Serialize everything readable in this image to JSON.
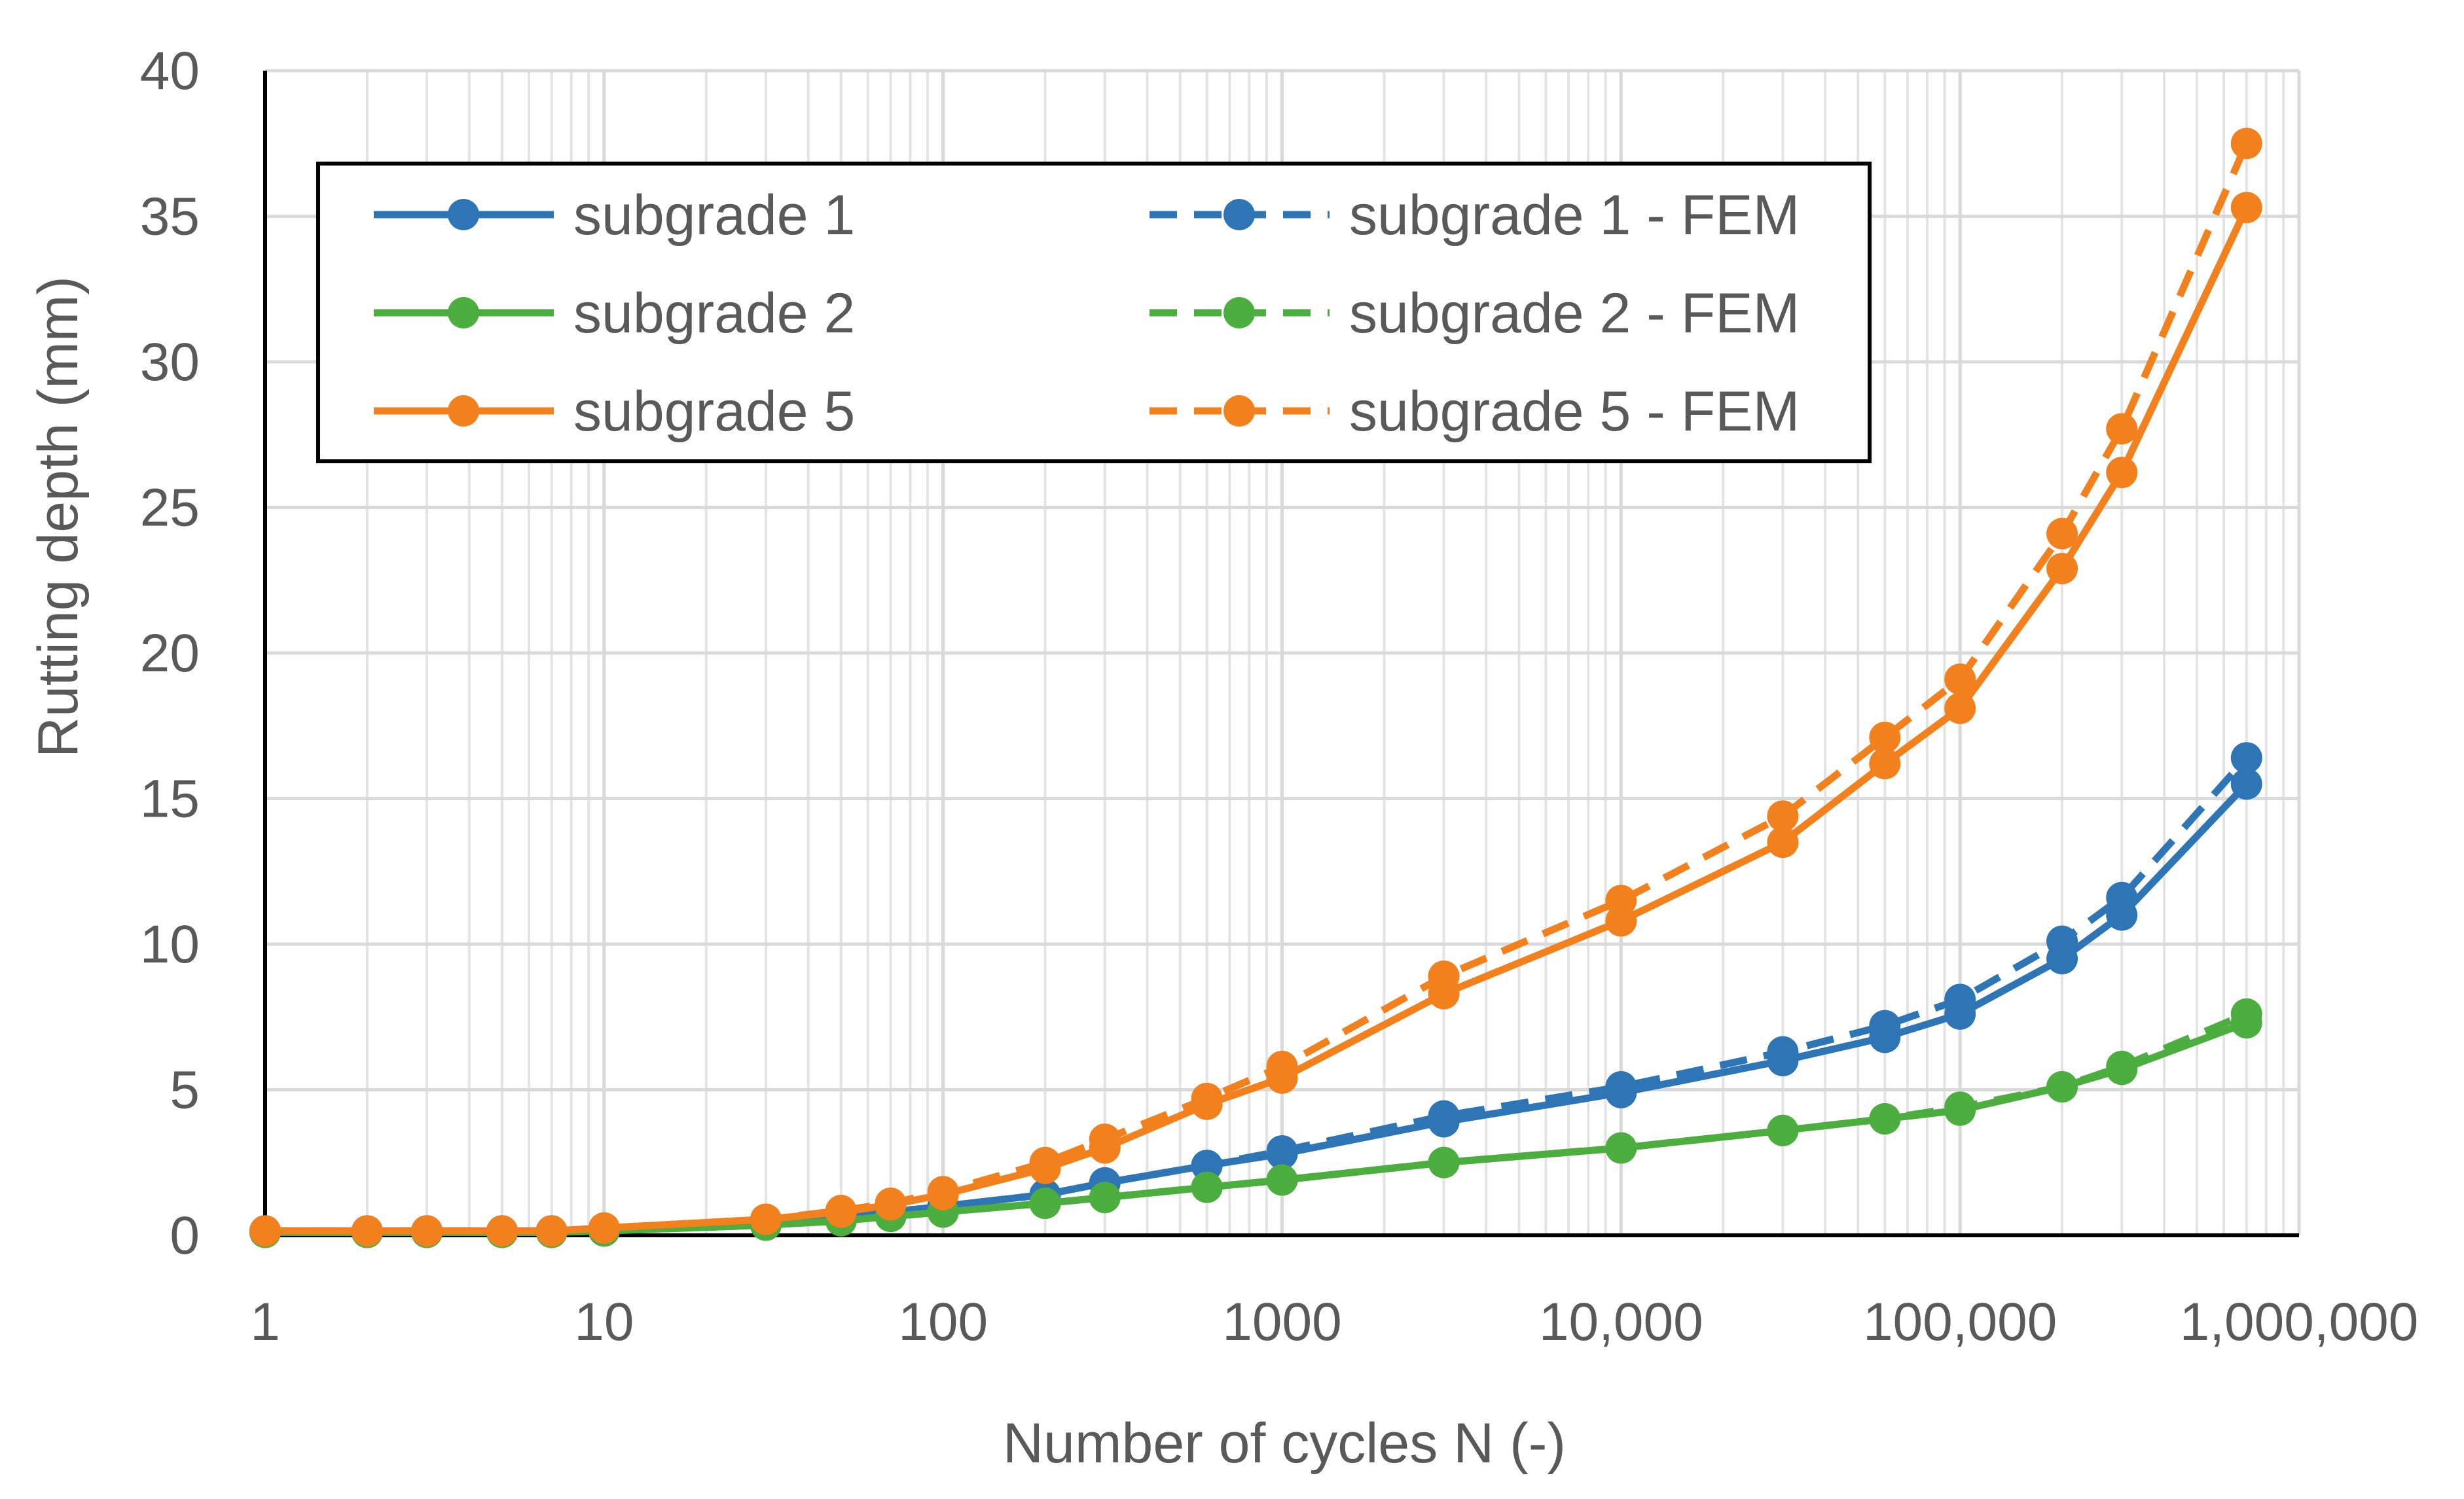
{
  "chart_data": {
    "type": "line",
    "title": "",
    "xlabel": "Number of cycles N (-)",
    "ylabel": "Rutting depth (mm)",
    "x_scale": "log",
    "xlim": [
      1,
      1000000
    ],
    "ylim": [
      0,
      40
    ],
    "x_ticks": [
      1,
      10,
      100,
      1000,
      10000,
      100000,
      1000000
    ],
    "x_tick_labels": [
      "1",
      "10",
      "100",
      "1000",
      "10,000",
      "100,000",
      "1,000,000"
    ],
    "y_ticks": [
      0,
      5,
      10,
      15,
      20,
      25,
      30,
      35,
      40
    ],
    "y_tick_labels": [
      "0",
      "5",
      "10",
      "15",
      "20",
      "25",
      "30",
      "35",
      "40"
    ],
    "grid": true,
    "legend": "top-left, inside, two columns",
    "series": [
      {
        "name": "subgrade 1",
        "color": "#2E75B6",
        "dashed": false,
        "x": [
          1,
          2,
          3,
          5,
          7,
          10,
          30,
          50,
          70,
          100,
          200,
          300,
          600,
          1000,
          3000,
          10000,
          30000,
          60000,
          100000,
          200000,
          300000,
          700000
        ],
        "y": [
          0.15,
          0.15,
          0.15,
          0.15,
          0.15,
          0.2,
          0.45,
          0.6,
          0.8,
          1.0,
          1.4,
          1.8,
          2.4,
          2.8,
          3.9,
          4.9,
          6.0,
          6.8,
          7.6,
          9.5,
          11.0,
          15.5
        ]
      },
      {
        "name": "subgrade 2",
        "color": "#4CAE3F",
        "dashed": false,
        "x": [
          1,
          2,
          3,
          5,
          7,
          10,
          30,
          50,
          70,
          100,
          200,
          300,
          600,
          1000,
          3000,
          10000,
          30000,
          60000,
          100000,
          200000,
          300000,
          700000
        ],
        "y": [
          0.1,
          0.1,
          0.1,
          0.1,
          0.1,
          0.15,
          0.35,
          0.5,
          0.65,
          0.8,
          1.1,
          1.3,
          1.65,
          1.9,
          2.5,
          3.0,
          3.6,
          4.0,
          4.3,
          5.1,
          5.7,
          7.3
        ]
      },
      {
        "name": "subgrade 5",
        "color": "#F2811D",
        "dashed": false,
        "x": [
          1,
          2,
          3,
          5,
          7,
          10,
          30,
          50,
          70,
          100,
          200,
          300,
          600,
          1000,
          3000,
          10000,
          30000,
          60000,
          100000,
          200000,
          300000,
          700000
        ],
        "y": [
          0.15,
          0.15,
          0.15,
          0.15,
          0.15,
          0.25,
          0.55,
          0.8,
          1.05,
          1.4,
          2.3,
          3.0,
          4.5,
          5.4,
          8.3,
          10.8,
          13.5,
          16.2,
          18.1,
          22.9,
          26.2,
          35.3
        ]
      },
      {
        "name": "subgrade 1 - FEM",
        "color": "#2E75B6",
        "dashed": true,
        "x": [
          1,
          2,
          3,
          5,
          7,
          10,
          30,
          50,
          70,
          100,
          200,
          300,
          600,
          1000,
          3000,
          10000,
          30000,
          60000,
          100000,
          200000,
          300000,
          700000
        ],
        "y": [
          0.15,
          0.15,
          0.15,
          0.15,
          0.15,
          0.2,
          0.45,
          0.6,
          0.8,
          1.0,
          1.4,
          1.8,
          2.4,
          2.9,
          4.1,
          5.1,
          6.3,
          7.2,
          8.1,
          10.1,
          11.6,
          16.4
        ]
      },
      {
        "name": "subgrade 2 - FEM",
        "color": "#4CAE3F",
        "dashed": true,
        "x": [
          1,
          2,
          3,
          5,
          7,
          10,
          30,
          50,
          70,
          100,
          200,
          300,
          600,
          1000,
          3000,
          10000,
          30000,
          60000,
          100000,
          200000,
          300000,
          700000
        ],
        "y": [
          0.1,
          0.1,
          0.1,
          0.1,
          0.1,
          0.15,
          0.35,
          0.5,
          0.65,
          0.8,
          1.1,
          1.3,
          1.65,
          1.9,
          2.5,
          3.0,
          3.6,
          4.0,
          4.4,
          5.1,
          5.8,
          7.6
        ]
      },
      {
        "name": "subgrade 5 - FEM",
        "color": "#F2811D",
        "dashed": true,
        "x": [
          1,
          2,
          3,
          5,
          7,
          10,
          30,
          50,
          70,
          100,
          200,
          300,
          600,
          1000,
          3000,
          10000,
          30000,
          60000,
          100000,
          200000,
          300000,
          700000
        ],
        "y": [
          0.15,
          0.15,
          0.15,
          0.15,
          0.15,
          0.25,
          0.55,
          0.85,
          1.1,
          1.5,
          2.5,
          3.3,
          4.7,
          5.8,
          8.9,
          11.5,
          14.4,
          17.1,
          19.1,
          24.1,
          27.7,
          37.5
        ]
      }
    ]
  }
}
